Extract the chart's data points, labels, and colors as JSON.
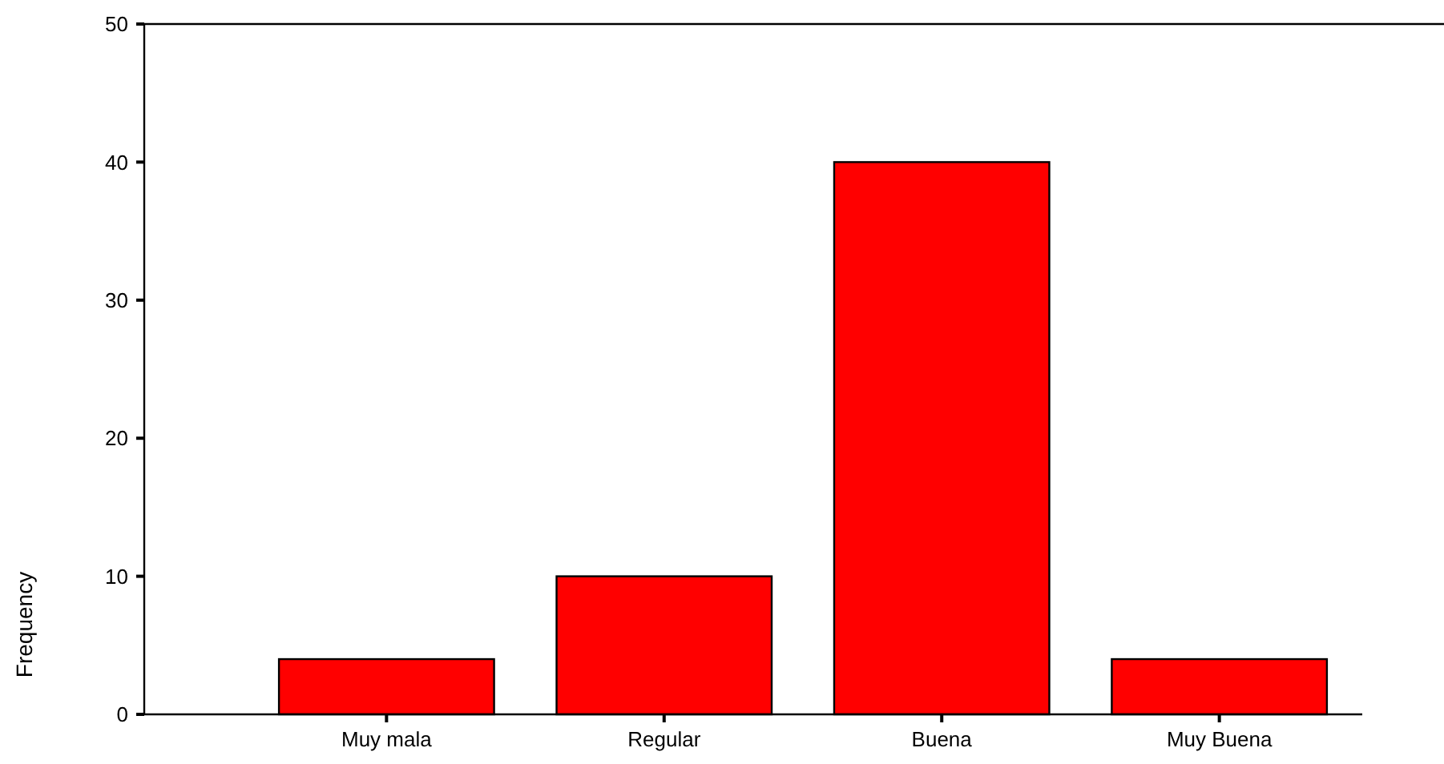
{
  "chart_data": {
    "type": "bar",
    "ylabel": "Frequency",
    "categories": [
      "Muy mala",
      "Regular",
      "Buena",
      "Muy Buena"
    ],
    "values": [
      4,
      10,
      40,
      4
    ],
    "color": "#ff0000",
    "ylim": [
      0,
      50
    ],
    "yticks": [
      0,
      10,
      20,
      30,
      40,
      50
    ]
  }
}
